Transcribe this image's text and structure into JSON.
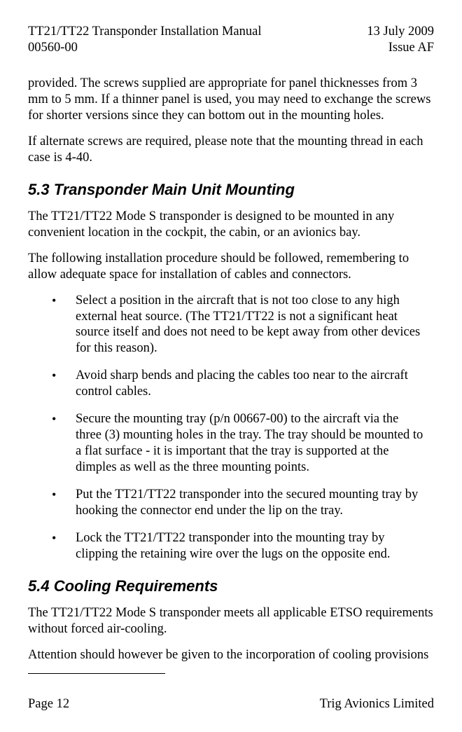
{
  "header": {
    "left_line1": "TT21/TT22 Transponder Installation Manual",
    "left_line2": "00560-00",
    "right_line1": "13 July 2009",
    "right_line2": "Issue AF"
  },
  "body": {
    "p1": "provided.  The screws supplied are appropriate for panel thicknesses from 3 mm to 5 mm.  If a thinner panel is used, you may need to exchange the screws for shorter versions since they can bottom out in the mounting holes.",
    "p2": "If alternate screws are required, please note that the mounting thread in each case is 4-40.",
    "h53": "5.3  Transponder Main Unit Mounting",
    "p3": "The TT21/TT22 Mode S transponder is designed to be mounted in any convenient location in the cockpit, the cabin, or an avionics bay.",
    "p4": "The following installation procedure should be followed, remembering to allow adequate space for installation of cables and connectors.",
    "bullets": [
      "Select a position in the aircraft that is not too close to any high external heat source.   (The TT21/TT22 is not a significant heat source itself and does not need to be kept away from other devices for this reason).",
      "Avoid sharp bends and placing the cables too near to the aircraft control cables.",
      "Secure the mounting tray (p/n 00667-00) to the aircraft via the three (3) mounting holes in the tray.  The tray should be mounted to a flat surface - it is important that the tray is supported at the dimples as well as the three mounting points.",
      "Put the TT21/TT22 transponder into the secured mounting tray by hooking the connector end under the lip on the tray.",
      "Lock the TT21/TT22 transponder into the mounting tray by clipping the retaining wire over the lugs on the opposite end."
    ],
    "h54": "5.4  Cooling Requirements",
    "p5": "The TT21/TT22 Mode S transponder meets all applicable ETSO requirements without forced air-cooling.",
    "p6": "Attention should however be given to the incorporation of cooling provisions"
  },
  "footer": {
    "left": "Page 12",
    "right": "Trig Avionics Limited"
  }
}
